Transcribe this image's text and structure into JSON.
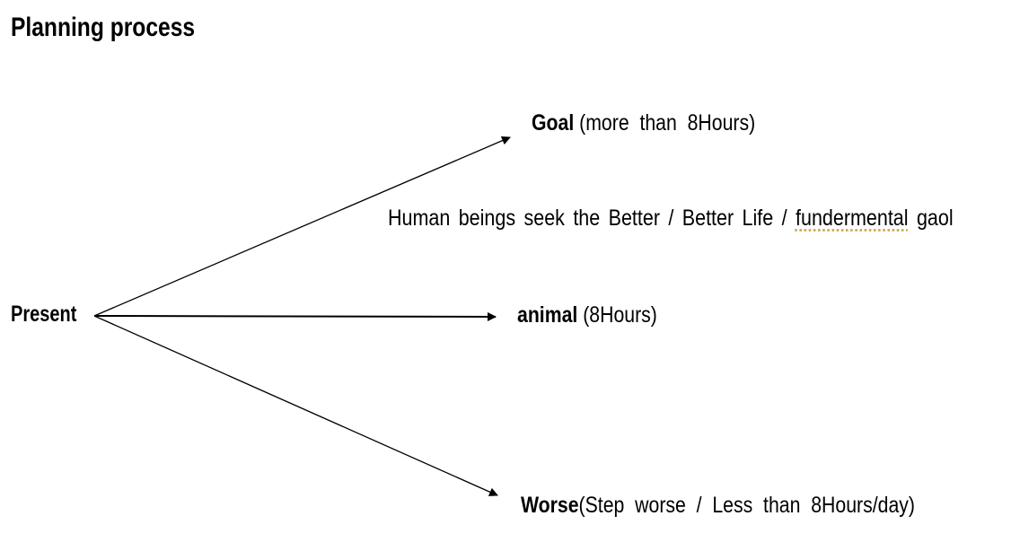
{
  "title": "Planning process",
  "nodes": {
    "present": "Present",
    "goal": {
      "bold": "Goal",
      "rest": " (more  than  8Hours)"
    },
    "animal": {
      "bold": "animal",
      "rest": " (8Hours)"
    },
    "worse": {
      "bold": "Worse",
      "rest": "(Step  worse  /  Less  than  8Hours/day)"
    }
  },
  "annotation": {
    "before": "Human beings seek the Better / Better Life / ",
    "flagged": "fundermental",
    "after": " gaol"
  },
  "colors": {
    "spellcheck_underline": "#c8a040"
  }
}
